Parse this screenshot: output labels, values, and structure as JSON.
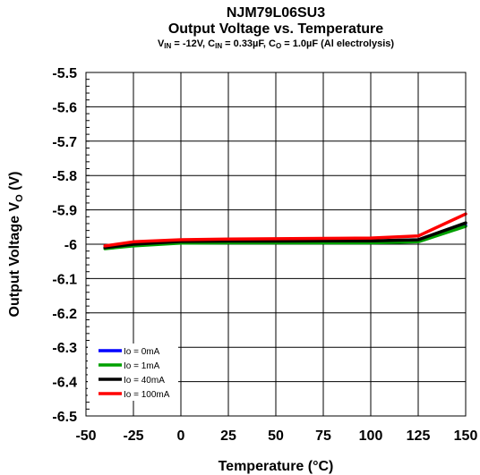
{
  "chart_data": {
    "type": "line",
    "title": "NJM79L06SU3",
    "subtitle": "Output Voltage vs. Temperature",
    "conditions": {
      "vin_label": "V",
      "vin_sub": "IN",
      "vin_value": " = -12V, C",
      "cin_sub": "IN",
      "cin_value": " = 0.33µF, C",
      "co_sub": "O",
      "co_value": " = 1.0µF (Al electrolysis)"
    },
    "xlabel": "Temperature (°C)",
    "ylabel_main": "Output Voltage V",
    "ylabel_sub": "O",
    "ylabel_unit": " (V)",
    "xlim": [
      -50,
      150
    ],
    "ylim": [
      -6.5,
      -5.5
    ],
    "x_ticks": [
      -50,
      -25,
      0,
      25,
      50,
      75,
      100,
      125,
      150
    ],
    "x_tick_labels": [
      "-50",
      "-25",
      "0",
      "25",
      "50",
      "75",
      "100",
      "125",
      "150"
    ],
    "y_ticks": [
      -5.5,
      -5.6,
      -5.7,
      -5.8,
      -5.9,
      -6.0,
      -6.1,
      -6.2,
      -6.3,
      -6.4,
      -6.5
    ],
    "y_tick_labels": [
      "-5.5",
      "-5.6",
      "-5.7",
      "-5.8",
      "-5.9",
      "-6",
      "-6.1",
      "-6.2",
      "-6.3",
      "-6.4",
      "-6.5"
    ],
    "grid": true,
    "legend_position": "bottom-left",
    "series": [
      {
        "name": "Io = 0mA",
        "color": "#0000ff",
        "x": [
          -40,
          -25,
          0,
          25,
          50,
          75,
          100,
          125,
          150
        ],
        "y": [
          -6.012,
          -6.003,
          -5.995,
          -5.994,
          -5.994,
          -5.994,
          -5.994,
          -5.991,
          -5.945
        ]
      },
      {
        "name": "Io = 1mA",
        "color": "#00a000",
        "x": [
          -40,
          -25,
          0,
          25,
          50,
          75,
          100,
          125,
          150
        ],
        "y": [
          -6.013,
          -6.005,
          -5.997,
          -5.996,
          -5.996,
          -5.996,
          -5.996,
          -5.993,
          -5.948
        ]
      },
      {
        "name": "Io = 40mA",
        "color": "#000000",
        "x": [
          -40,
          -25,
          0,
          25,
          50,
          75,
          100,
          125,
          150
        ],
        "y": [
          -6.01,
          -6.0,
          -5.992,
          -5.991,
          -5.991,
          -5.99,
          -5.99,
          -5.987,
          -5.938
        ]
      },
      {
        "name": "Io = 100mA",
        "color": "#ff0000",
        "x": [
          -40,
          -25,
          0,
          25,
          50,
          75,
          100,
          125,
          150
        ],
        "y": [
          -6.005,
          -5.993,
          -5.987,
          -5.985,
          -5.984,
          -5.983,
          -5.982,
          -5.976,
          -5.912
        ]
      }
    ]
  }
}
